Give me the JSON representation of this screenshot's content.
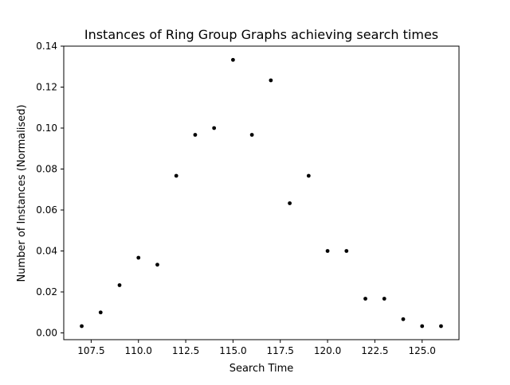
{
  "chart_data": {
    "type": "scatter",
    "title": "Instances of Ring Group Graphs achieving search times",
    "xlabel": "Search Time",
    "ylabel": "Number of Instances (Normalised)",
    "xlim": [
      106.05,
      126.95
    ],
    "ylim": [
      -0.0033,
      0.14
    ],
    "xticks": [
      107.5,
      110.0,
      112.5,
      115.0,
      117.5,
      120.0,
      122.5,
      125.0
    ],
    "xtick_labels": [
      "107.5",
      "110.0",
      "112.5",
      "115.0",
      "117.5",
      "120.0",
      "122.5",
      "125.0"
    ],
    "yticks": [
      0.0,
      0.02,
      0.04,
      0.06,
      0.08,
      0.1,
      0.12,
      0.14
    ],
    "ytick_labels": [
      "0.00",
      "0.02",
      "0.04",
      "0.06",
      "0.08",
      "0.10",
      "0.12",
      "0.14"
    ],
    "grid": false,
    "marker_color": "#000000",
    "points": [
      {
        "x": 107,
        "y": 0.0033
      },
      {
        "x": 108,
        "y": 0.01
      },
      {
        "x": 109,
        "y": 0.0233
      },
      {
        "x": 110,
        "y": 0.0367
      },
      {
        "x": 111,
        "y": 0.0333
      },
      {
        "x": 112,
        "y": 0.0767
      },
      {
        "x": 113,
        "y": 0.0967
      },
      {
        "x": 114,
        "y": 0.1
      },
      {
        "x": 115,
        "y": 0.1333
      },
      {
        "x": 116,
        "y": 0.0967
      },
      {
        "x": 117,
        "y": 0.1233
      },
      {
        "x": 118,
        "y": 0.0633
      },
      {
        "x": 119,
        "y": 0.0767
      },
      {
        "x": 120,
        "y": 0.04
      },
      {
        "x": 121,
        "y": 0.04
      },
      {
        "x": 122,
        "y": 0.0167
      },
      {
        "x": 123,
        "y": 0.0167
      },
      {
        "x": 124,
        "y": 0.0067
      },
      {
        "x": 125,
        "y": 0.0033
      },
      {
        "x": 126,
        "y": 0.0033
      }
    ]
  }
}
